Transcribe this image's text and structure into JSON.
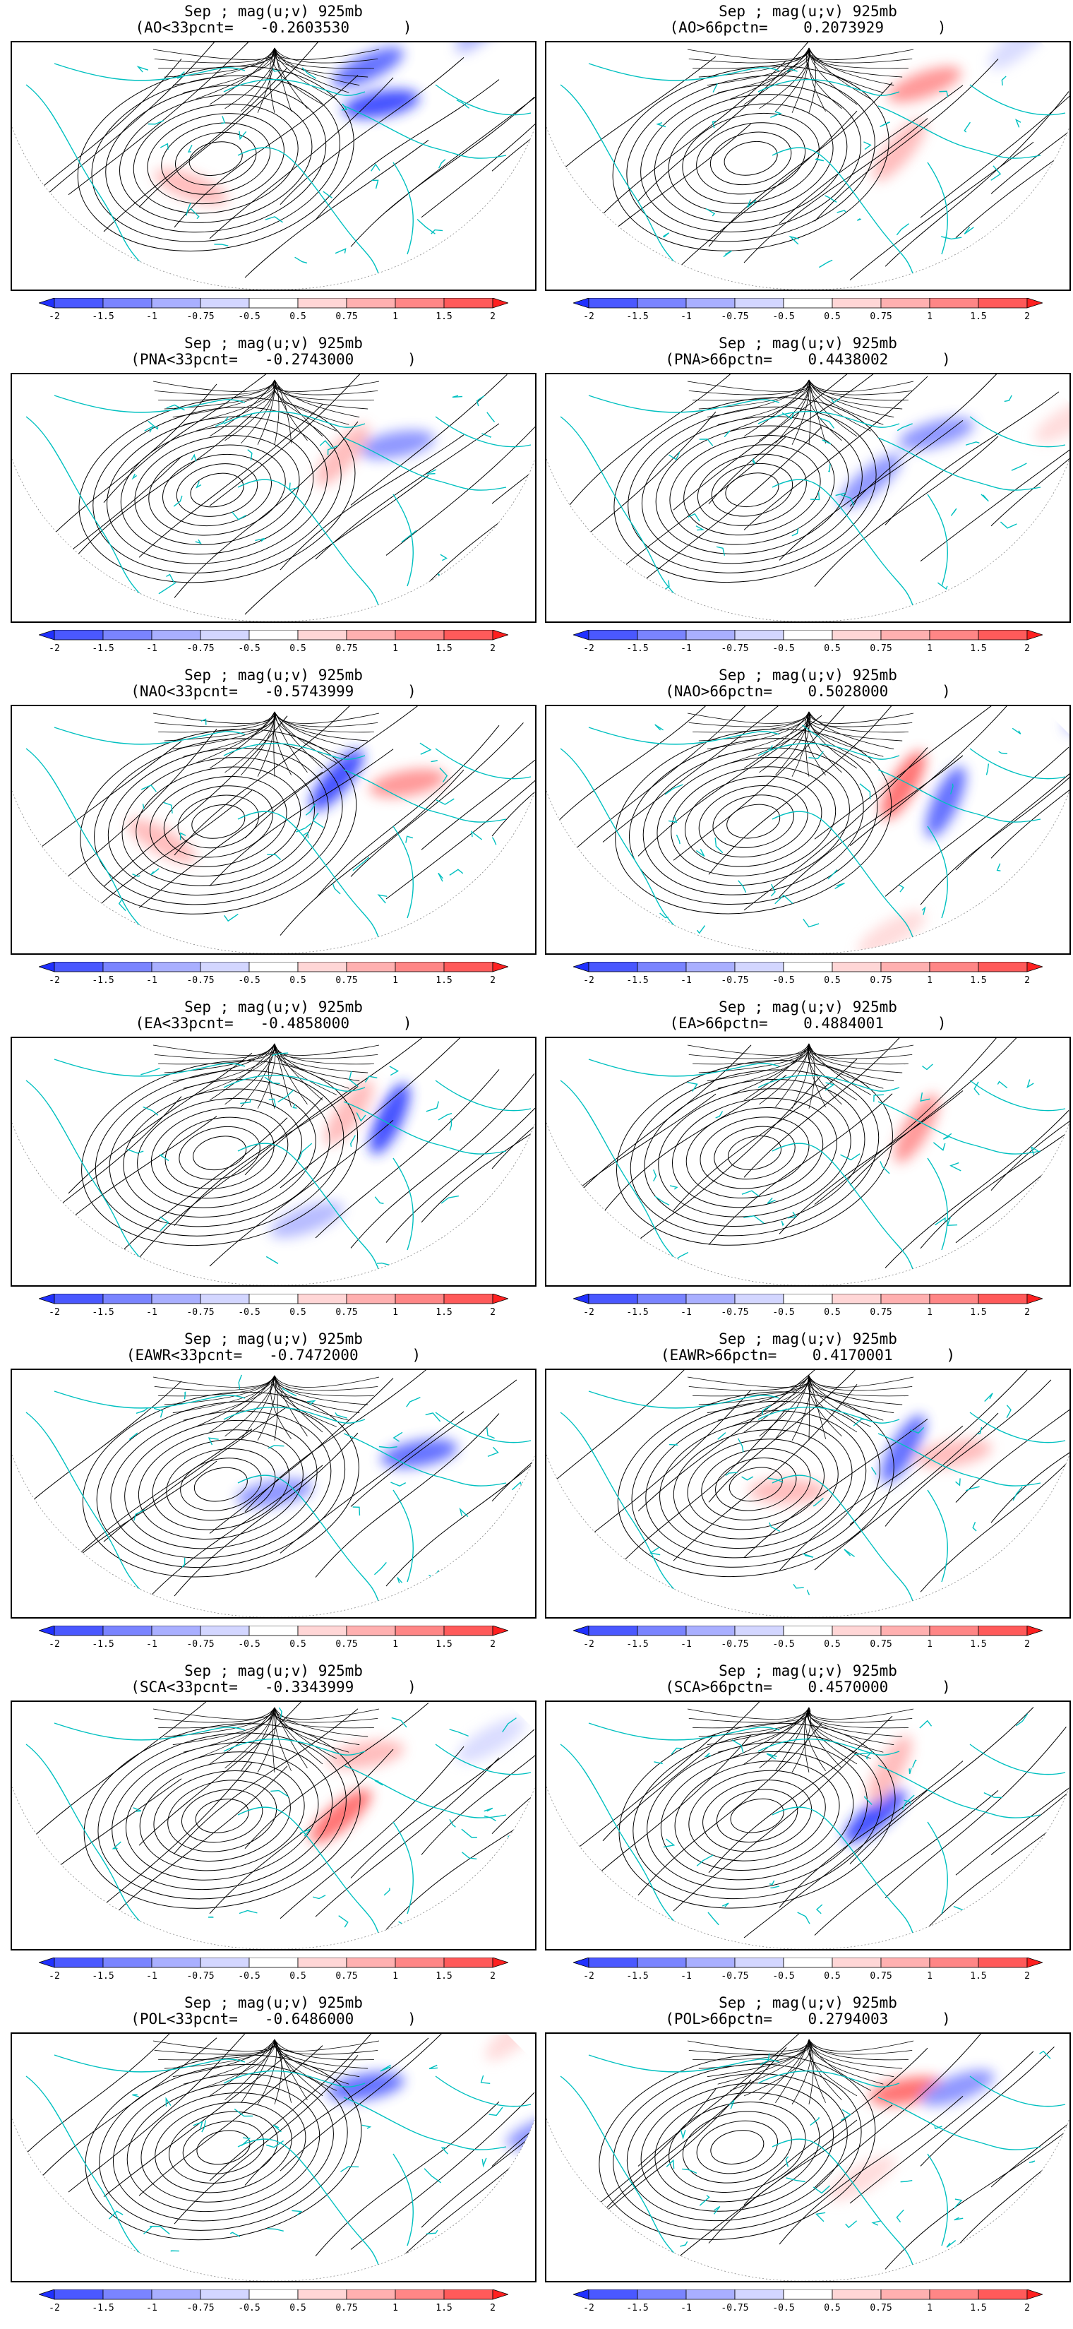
{
  "figure": {
    "colorbar": {
      "ticks": [
        "-2",
        "-1.5",
        "-1",
        "-0.75",
        "-0.5",
        "0.5",
        "0.75",
        "1",
        "1.5",
        "2"
      ],
      "colors": [
        "#2030ff",
        "#4a58ff",
        "#7a84ff",
        "#a9afff",
        "#d3d6ff",
        "#ffffff",
        "#ffd6d6",
        "#ffb0b0",
        "#ff8686",
        "#ff5a5a",
        "#ff2020"
      ],
      "extend": "both"
    },
    "colors": {
      "coastline": "#00c0c0",
      "streamline": "#000000",
      "positive": "#ff2020",
      "negative": "#2030ff"
    },
    "panels": [
      {
        "title": "Sep ; mag(u;v) 925mb",
        "subtitle": "(AO<33pcnt=   -0.2603530      )",
        "anomalies": [
          {
            "lon": -75,
            "lat": 68,
            "v": -1.5
          },
          {
            "lon": -60,
            "lat": 62,
            "v": -2
          },
          {
            "lon": 150,
            "lat": 52,
            "v": 1.0
          },
          {
            "lon": -95,
            "lat": 42,
            "v": -0.75
          },
          {
            "lon": 30,
            "lat": 52,
            "v": 1.0
          }
        ]
      },
      {
        "title": "Sep ; mag(u;v) 925mb",
        "subtitle": "(AO>66pctn=    0.2073929      )",
        "anomalies": [
          {
            "lon": -70,
            "lat": 62,
            "v": 1.5
          },
          {
            "lon": -40,
            "lat": 58,
            "v": 1.0
          },
          {
            "lon": -130,
            "lat": 48,
            "v": -0.75
          },
          {
            "lon": -90,
            "lat": 42,
            "v": -0.5
          }
        ]
      },
      {
        "title": "Sep ; mag(u;v) 925mb",
        "subtitle": "(PNA<33pcnt=   -0.2743000      )",
        "anomalies": [
          {
            "lon": 170,
            "lat": 58,
            "v": 1.0
          },
          {
            "lon": -160,
            "lat": 40,
            "v": 1.0
          },
          {
            "lon": -60,
            "lat": 58,
            "v": -1.0
          },
          {
            "lon": -40,
            "lat": 66,
            "v": 1.0
          },
          {
            "lon": -100,
            "lat": 25,
            "v": -0.75
          }
        ]
      },
      {
        "title": "Sep ; mag(u;v) 925mb",
        "subtitle": "(PNA>66pctn=    0.4438002      )",
        "anomalies": [
          {
            "lon": -65,
            "lat": 58,
            "v": -1.0
          },
          {
            "lon": -30,
            "lat": 62,
            "v": -1.0
          },
          {
            "lon": -150,
            "lat": 45,
            "v": -0.75
          },
          {
            "lon": -80,
            "lat": 30,
            "v": 0.75
          }
        ]
      },
      {
        "title": "Sep ; mag(u;v) 925mb",
        "subtitle": "(NAO<33pcnt=   -0.5743999      )",
        "anomalies": [
          {
            "lon": -60,
            "lat": 55,
            "v": 1.5
          },
          {
            "lon": -40,
            "lat": 68,
            "v": -2
          },
          {
            "lon": 150,
            "lat": 50,
            "v": -1.0
          },
          {
            "lon": 40,
            "lat": 50,
            "v": 1.0
          }
        ]
      },
      {
        "title": "Sep ; mag(u;v) 925mb",
        "subtitle": "(NAO>66pctn=    0.5028000      )",
        "anomalies": [
          {
            "lon": -50,
            "lat": 62,
            "v": 2
          },
          {
            "lon": -55,
            "lat": 52,
            "v": -1.5
          },
          {
            "lon": -90,
            "lat": 25,
            "v": -0.75
          },
          {
            "lon": -20,
            "lat": 35,
            "v": 0.75
          }
        ]
      },
      {
        "title": "Sep ; mag(u;v) 925mb",
        "subtitle": "(EA<33pcnt=   -0.4858000      )",
        "anomalies": [
          {
            "lon": -55,
            "lat": 58,
            "v": -2
          },
          {
            "lon": -45,
            "lat": 66,
            "v": 1.0
          },
          {
            "lon": 175,
            "lat": 45,
            "v": -1.0
          },
          {
            "lon": -10,
            "lat": 48,
            "v": -0.75
          }
        ]
      },
      {
        "title": "Sep ; mag(u;v) 925mb",
        "subtitle": "(EA>66pctn=    0.4884001      )",
        "anomalies": [
          {
            "lon": -50,
            "lat": 58,
            "v": 1.5
          },
          {
            "lon": 175,
            "lat": 55,
            "v": -1.0
          },
          {
            "lon": -100,
            "lat": 35,
            "v": 0.75
          },
          {
            "lon": 20,
            "lat": 50,
            "v": 0.5
          }
        ]
      },
      {
        "title": "Sep ; mag(u;v) 925mb",
        "subtitle": "(EAWR<33pcnt=   -0.7472000      )",
        "anomalies": [
          {
            "lon": -60,
            "lat": 52,
            "v": -1.5
          },
          {
            "lon": 0,
            "lat": 62,
            "v": -1.0
          },
          {
            "lon": 170,
            "lat": 45,
            "v": -0.75
          },
          {
            "lon": -120,
            "lat": 25,
            "v": 0.75
          }
        ]
      },
      {
        "title": "Sep ; mag(u;v) 925mb",
        "subtitle": "(EAWR>66pctn=    0.4170001      )",
        "anomalies": [
          {
            "lon": 175,
            "lat": 45,
            "v": 1.5
          },
          {
            "lon": -50,
            "lat": 62,
            "v": -1.5
          },
          {
            "lon": -60,
            "lat": 52,
            "v": 1.0
          },
          {
            "lon": -110,
            "lat": 22,
            "v": 1.0
          },
          {
            "lon": 10,
            "lat": 62,
            "v": 1.0
          }
        ]
      },
      {
        "title": "Sep ; mag(u;v) 925mb",
        "subtitle": "(SCA<33pcnt=   -0.3343999      )",
        "anomalies": [
          {
            "lon": -30,
            "lat": 60,
            "v": 2
          },
          {
            "lon": 160,
            "lat": 55,
            "v": -1.0
          },
          {
            "lon": -60,
            "lat": 66,
            "v": 1.0
          },
          {
            "lon": -80,
            "lat": 40,
            "v": -0.5
          }
        ]
      },
      {
        "title": "Sep ; mag(u;v) 925mb",
        "subtitle": "(SCA>66pctn=    0.4570000      )",
        "anomalies": [
          {
            "lon": 140,
            "lat": 48,
            "v": 2
          },
          {
            "lon": 150,
            "lat": 40,
            "v": -1.5
          },
          {
            "lon": -30,
            "lat": 60,
            "v": -2
          },
          {
            "lon": -50,
            "lat": 66,
            "v": 1.0
          }
        ]
      },
      {
        "title": "Sep ; mag(u;v) 925mb",
        "subtitle": "(POL<33pcnt=   -0.6486000      )",
        "anomalies": [
          {
            "lon": -60,
            "lat": 66,
            "v": -1.5
          },
          {
            "lon": -90,
            "lat": 35,
            "v": 0.75
          },
          {
            "lon": -70,
            "lat": 25,
            "v": -1.0
          },
          {
            "lon": 170,
            "lat": 50,
            "v": -0.75
          }
        ]
      },
      {
        "title": "Sep ; mag(u;v) 925mb",
        "subtitle": "(POL>66pctn=    0.2794003      )",
        "anomalies": [
          {
            "lon": -60,
            "lat": 64,
            "v": 2
          },
          {
            "lon": -70,
            "lat": 54,
            "v": -1.0
          },
          {
            "lon": -20,
            "lat": 55,
            "v": 0.75
          },
          {
            "lon": 165,
            "lat": 50,
            "v": 0.5
          }
        ]
      }
    ]
  }
}
